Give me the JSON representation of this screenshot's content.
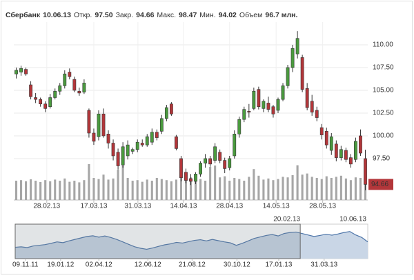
{
  "chart_data": {
    "type": "candlestick",
    "header": {
      "name": "Сбербанк",
      "date": "10.06.13",
      "fields": [
        {
          "label": "Откр.",
          "value": "97.50"
        },
        {
          "label": "Закр.",
          "value": "94.66"
        },
        {
          "label": "Макс.",
          "value": "98.47"
        },
        {
          "label": "Мин.",
          "value": "94.02"
        },
        {
          "label": "Объем",
          "value": "96.7 млн."
        }
      ]
    },
    "ylim": [
      92.95,
      111.89
    ],
    "yticks": [
      {
        "value": 97.5,
        "label": "97.50"
      },
      {
        "value": 100,
        "label": "100.00"
      },
      {
        "value": 102.5,
        "label": "102.50"
      },
      {
        "value": 105,
        "label": "105.00"
      },
      {
        "value": 107.5,
        "label": "107.50"
      },
      {
        "value": 110,
        "label": "110.00"
      }
    ],
    "xlim": [
      -0.5,
      72.5
    ],
    "xticks": [
      {
        "value": 6.3,
        "label": "28.02.13"
      },
      {
        "value": 16,
        "label": "17.03.13"
      },
      {
        "value": 25.1,
        "label": "31.03.13"
      },
      {
        "value": 34.5,
        "label": "14.04.13"
      },
      {
        "value": 44,
        "label": "28.04.13"
      },
      {
        "value": 53.6,
        "label": "14.05.13"
      },
      {
        "value": 63.2,
        "label": "28.05.13"
      }
    ],
    "grid": true,
    "up_color": "#4a9a3e",
    "down_color": "#b3363a",
    "open": [
      106.8,
      107.0,
      107.3,
      105.6,
      104.2,
      104.0,
      103.5,
      103.2,
      104.2,
      104.9,
      105.5,
      107.0,
      106.2,
      104.9,
      104.8,
      102.8,
      100.3,
      99.9,
      102.4,
      100.2,
      99.2,
      98.2,
      96.8,
      97.8,
      98.3,
      98.5,
      99.2,
      99.0,
      99.3,
      100.4,
      100.5,
      101.9,
      103.5,
      99.9,
      97.5,
      96.0,
      95.3,
      95.0,
      95.8,
      97.0,
      97.5,
      97.3,
      98.2,
      97.3,
      96.5,
      97.8,
      100.2,
      101.8,
      102.7,
      103.0,
      105.1,
      103.0,
      103.6,
      103.2,
      102.8,
      104.0,
      105.5,
      107.5,
      109.0,
      108.6,
      105.2,
      103.8,
      102.8,
      100.9,
      100.5,
      98.4,
      99.1,
      97.6,
      98.4,
      97.6,
      97.4,
      100.0,
      97.5
    ],
    "high": [
      107.5,
      107.7,
      107.5,
      106.0,
      104.7,
      104.2,
      103.8,
      104.6,
      105.2,
      105.8,
      107.2,
      107.4,
      106.5,
      105.3,
      106.2,
      103.0,
      100.8,
      102.8,
      103.0,
      100.6,
      99.6,
      98.6,
      99.3,
      99.5,
      98.7,
      99.6,
      99.6,
      100.2,
      100.8,
      100.7,
      102.3,
      103.4,
      103.7,
      100.1,
      97.8,
      96.4,
      95.8,
      96.0,
      97.2,
      98.0,
      97.8,
      99.2,
      98.5,
      97.6,
      97.8,
      100.6,
      102.1,
      103.2,
      103.5,
      105.3,
      105.4,
      104.0,
      104.3,
      103.4,
      104.2,
      105.8,
      107.8,
      110.0,
      111.5,
      108.9,
      105.8,
      104.5,
      103.2,
      101.3,
      100.9,
      100.3,
      99.5,
      98.9,
      98.7,
      98.0,
      99.8,
      100.7,
      98.47
    ],
    "low": [
      106.3,
      106.6,
      106.6,
      104.0,
      103.6,
      103.2,
      102.6,
      103.0,
      104.0,
      104.5,
      105.2,
      106.2,
      104.8,
      104.4,
      104.6,
      99.8,
      99.0,
      99.5,
      99.8,
      98.6,
      97.3,
      96.3,
      96.5,
      97.4,
      98.0,
      98.2,
      98.8,
      98.8,
      99.0,
      99.5,
      100.2,
      101.6,
      102.2,
      98.4,
      95.0,
      94.8,
      94.6,
      94.7,
      95.5,
      96.5,
      96.6,
      97.0,
      97.0,
      95.9,
      96.2,
      97.5,
      99.8,
      101.5,
      102.0,
      102.8,
      102.9,
      102.6,
      102.6,
      102.0,
      102.5,
      103.8,
      105.2,
      107.0,
      108.5,
      104.8,
      102.8,
      102.2,
      101.6,
      99.6,
      98.6,
      97.9,
      97.2,
      97.3,
      97.1,
      96.5,
      97.1,
      97.8,
      94.02
    ],
    "close": [
      107.2,
      107.4,
      106.8,
      104.3,
      104.0,
      103.5,
      103.0,
      104.2,
      104.9,
      105.5,
      106.8,
      106.5,
      105.0,
      104.7,
      105.8,
      100.3,
      99.4,
      102.4,
      100.0,
      99.2,
      97.8,
      96.7,
      98.8,
      99.0,
      98.5,
      99.3,
      99.0,
      99.9,
      100.4,
      99.8,
      101.9,
      103.1,
      102.4,
      98.6,
      95.4,
      95.1,
      95.0,
      95.8,
      97.0,
      97.5,
      96.9,
      98.8,
      97.3,
      96.4,
      97.5,
      100.2,
      101.8,
      102.9,
      102.6,
      104.9,
      103.2,
      103.8,
      102.9,
      102.4,
      104.0,
      105.5,
      107.5,
      109.6,
      110.7,
      105.1,
      103.1,
      102.6,
      102.0,
      100.1,
      99.0,
      99.9,
      97.6,
      98.5,
      97.4,
      96.9,
      99.4,
      98.1,
      94.66
    ],
    "volume": {
      "color": "#a6a6a6",
      "ylim": [
        0,
        250
      ],
      "values": [
        70,
        72,
        68,
        75,
        70,
        65,
        72,
        68,
        74,
        70,
        78,
        66,
        70,
        64,
        72,
        130,
        80,
        76,
        92,
        74,
        78,
        110,
        125,
        80,
        70,
        72,
        66,
        74,
        70,
        80,
        76,
        72,
        68,
        74,
        92,
        88,
        82,
        78,
        76,
        70,
        120,
        125,
        82,
        86,
        70,
        80,
        76,
        70,
        84,
        112,
        88,
        74,
        78,
        72,
        76,
        84,
        82,
        90,
        126,
        92,
        96,
        84,
        80,
        76,
        86,
        80,
        84,
        88,
        78,
        72,
        82,
        80,
        96.7
      ]
    },
    "navigator": {
      "color": "#4c74a8",
      "fill": "#c9d6e6",
      "ylim": [
        80,
        115
      ],
      "xlim": [
        0,
        59
      ],
      "values": [
        91.5,
        92.0,
        91.2,
        92.8,
        93.5,
        94.2,
        95.5,
        97.0,
        96.2,
        98.0,
        99.5,
        101.0,
        102.5,
        103.2,
        101.8,
        103.0,
        101.5,
        99.5,
        97.0,
        94.5,
        92.0,
        90.5,
        89.5,
        90.8,
        92.5,
        94.0,
        95.0,
        96.5,
        95.8,
        97.2,
        98.5,
        99.2,
        98.0,
        99.5,
        98.2,
        97.0,
        96.0,
        93.5,
        95.5,
        98.0,
        100.5,
        102.0,
        103.5,
        104.5,
        103.0,
        105.5,
        106.5,
        107.0,
        105.5,
        104.0,
        102.5,
        103.5,
        104.8,
        103.8,
        105.0,
        106.5,
        107.5,
        104.0,
        101.5,
        97.0
      ],
      "xticks": [
        {
          "value": 1.7,
          "label": "09.11.11"
        },
        {
          "value": 7.6,
          "label": "19.01.12"
        },
        {
          "value": 14,
          "label": "02.04.12"
        },
        {
          "value": 22.2,
          "label": "12.06.12"
        },
        {
          "value": 29.6,
          "label": "21.08.12"
        },
        {
          "value": 37.1,
          "label": "30.10.12"
        },
        {
          "value": 44.1,
          "label": "17.01.13"
        },
        {
          "value": 51.7,
          "label": "31.03.13"
        }
      ],
      "range": [
        {
          "value": 47.7,
          "label": "20.02.13"
        },
        {
          "value": 59,
          "label": "10.06.13"
        }
      ]
    }
  }
}
